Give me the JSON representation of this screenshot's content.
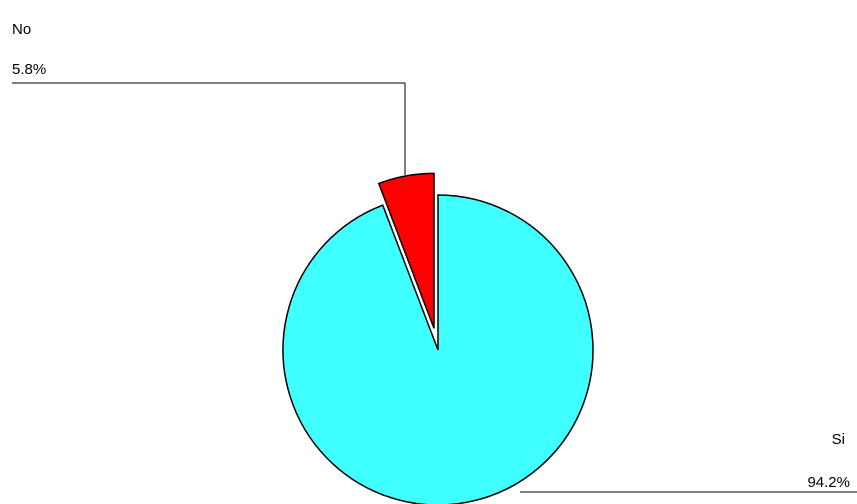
{
  "chart_data": {
    "type": "pie",
    "categories": [
      "Si",
      "No"
    ],
    "values": [
      94.2,
      5.8
    ],
    "value_labels": [
      "94.2%",
      "5.8%"
    ],
    "colors": [
      "#40ffff",
      "#ff0000"
    ]
  }
}
